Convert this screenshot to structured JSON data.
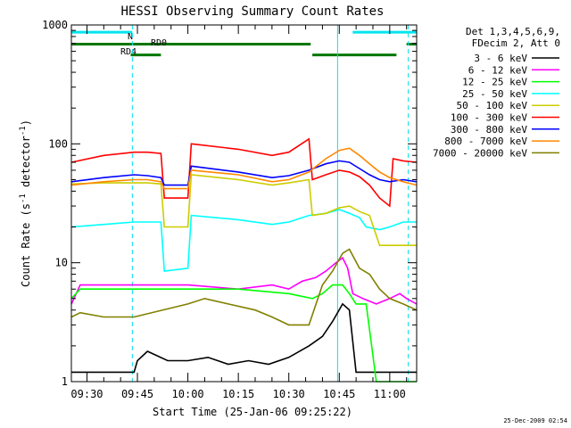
{
  "chart_data": {
    "type": "line",
    "title": "HESSI Observing Summary Count Rates",
    "xlabel": "Start Time (25-Jan-06 09:25:22)",
    "ylabel_prefix": "Count Rate (s",
    "ylabel_sup1": "-1",
    "ylabel_mid": " detector",
    "ylabel_sup2": "-1",
    "ylabel_suffix": ")",
    "yscale": "log",
    "ylim": [
      1,
      1000
    ],
    "xlim_min": [
      565.37,
      668
    ],
    "xticks": [
      {
        "min": 570,
        "label": "09:30"
      },
      {
        "min": 585,
        "label": "09:45"
      },
      {
        "min": 600,
        "label": "10:00"
      },
      {
        "min": 615,
        "label": "10:15"
      },
      {
        "min": 630,
        "label": "10:30"
      },
      {
        "min": 645,
        "label": "10:45"
      },
      {
        "min": 660,
        "label": "11:00"
      }
    ],
    "yticks": [
      {
        "value": 1,
        "label": "1"
      },
      {
        "value": 10,
        "label": "10"
      },
      {
        "value": 100,
        "label": "100"
      },
      {
        "value": 1000,
        "label": "1000"
      }
    ],
    "legend_header": [
      "Det 1,3,4,5,6,9,",
      "FDecim 2, Att 0"
    ],
    "series": [
      {
        "name": "3 - 6 keV",
        "color": "#000000",
        "points": [
          [
            565.4,
            1.2
          ],
          [
            584,
            1.2
          ],
          [
            585,
            1.5
          ],
          [
            588,
            1.8
          ],
          [
            594,
            1.5
          ],
          [
            600,
            1.5
          ],
          [
            606,
            1.6
          ],
          [
            612,
            1.4
          ],
          [
            618,
            1.5
          ],
          [
            624,
            1.4
          ],
          [
            630,
            1.6
          ],
          [
            636,
            2.0
          ],
          [
            640,
            2.4
          ],
          [
            643,
            3.2
          ],
          [
            646,
            4.5
          ],
          [
            648,
            4.0
          ],
          [
            650,
            1.2
          ],
          [
            668,
            1.2
          ]
        ]
      },
      {
        "name": "6 - 12 keV",
        "color": "#ff00ff",
        "points": [
          [
            565.4,
            4.5
          ],
          [
            568,
            6.5
          ],
          [
            584,
            6.5
          ],
          [
            600,
            6.5
          ],
          [
            615,
            6.0
          ],
          [
            625,
            6.5
          ],
          [
            630,
            6.0
          ],
          [
            634,
            7.0
          ],
          [
            638,
            7.5
          ],
          [
            641,
            8.5
          ],
          [
            644,
            10
          ],
          [
            646,
            11
          ],
          [
            647.5,
            9
          ],
          [
            649,
            5.5
          ],
          [
            652,
            5.0
          ],
          [
            656,
            4.5
          ],
          [
            660,
            5.0
          ],
          [
            663,
            5.5
          ],
          [
            665,
            5.0
          ],
          [
            668,
            4.5
          ]
        ]
      },
      {
        "name": "12 - 25 keV",
        "color": "#00ff00",
        "points": [
          [
            565.4,
            5.0
          ],
          [
            568,
            6.0
          ],
          [
            584,
            6.0
          ],
          [
            600,
            6.0
          ],
          [
            615,
            6.0
          ],
          [
            630,
            5.5
          ],
          [
            637,
            5.0
          ],
          [
            640,
            5.5
          ],
          [
            643,
            6.5
          ],
          [
            646,
            6.5
          ],
          [
            648,
            5.5
          ],
          [
            650,
            4.5
          ],
          [
            653,
            4.5
          ],
          [
            656,
            1.0
          ],
          [
            668,
            1.0
          ]
        ]
      },
      {
        "name": "25 - 50 keV",
        "color": "#00ffff",
        "points": [
          [
            565.4,
            20
          ],
          [
            575,
            21
          ],
          [
            584,
            22
          ],
          [
            588,
            22
          ],
          [
            592,
            22
          ],
          [
            593,
            8.5
          ],
          [
            600,
            9
          ],
          [
            601,
            25
          ],
          [
            615,
            23
          ],
          [
            625,
            21
          ],
          [
            630,
            22
          ],
          [
            636,
            25
          ],
          [
            641,
            26
          ],
          [
            645,
            28
          ],
          [
            648,
            26
          ],
          [
            651,
            24
          ],
          [
            653,
            20
          ],
          [
            657,
            19
          ],
          [
            660,
            20
          ],
          [
            662,
            21
          ],
          [
            664,
            22
          ],
          [
            668,
            22
          ]
        ]
      },
      {
        "name": "50 - 100 keV",
        "color": "#cccc00",
        "points": [
          [
            565.4,
            46
          ],
          [
            575,
            47
          ],
          [
            584,
            47
          ],
          [
            588,
            47
          ],
          [
            592,
            46
          ],
          [
            593,
            20
          ],
          [
            600,
            20
          ],
          [
            601,
            55
          ],
          [
            615,
            50
          ],
          [
            625,
            45
          ],
          [
            630,
            47
          ],
          [
            636,
            50
          ],
          [
            637,
            25
          ],
          [
            641,
            26
          ],
          [
            645,
            29
          ],
          [
            648,
            30
          ],
          [
            651,
            27
          ],
          [
            654,
            25
          ],
          [
            657,
            14
          ],
          [
            660,
            14
          ],
          [
            664,
            14
          ],
          [
            668,
            14
          ]
        ]
      },
      {
        "name": "100 - 300 keV",
        "color": "#ff0000",
        "points": [
          [
            565.4,
            70
          ],
          [
            575,
            80
          ],
          [
            584,
            85
          ],
          [
            588,
            85
          ],
          [
            592,
            83
          ],
          [
            593,
            35
          ],
          [
            600,
            35
          ],
          [
            601,
            100
          ],
          [
            615,
            90
          ],
          [
            625,
            80
          ],
          [
            630,
            85
          ],
          [
            636,
            110
          ],
          [
            637,
            50
          ],
          [
            641,
            55
          ],
          [
            645,
            60
          ],
          [
            648,
            58
          ],
          [
            651,
            53
          ],
          [
            654,
            45
          ],
          [
            657,
            35
          ],
          [
            660,
            30
          ],
          [
            661,
            75
          ],
          [
            664,
            72
          ],
          [
            668,
            70
          ]
        ]
      },
      {
        "name": "300 - 800 keV",
        "color": "#0000ff",
        "points": [
          [
            565.4,
            48
          ],
          [
            575,
            52
          ],
          [
            584,
            55
          ],
          [
            588,
            54
          ],
          [
            592,
            52
          ],
          [
            593,
            45
          ],
          [
            600,
            45
          ],
          [
            601,
            65
          ],
          [
            615,
            58
          ],
          [
            625,
            52
          ],
          [
            630,
            54
          ],
          [
            636,
            60
          ],
          [
            641,
            68
          ],
          [
            645,
            72
          ],
          [
            648,
            70
          ],
          [
            651,
            62
          ],
          [
            654,
            55
          ],
          [
            657,
            50
          ],
          [
            660,
            48
          ],
          [
            664,
            50
          ],
          [
            668,
            48
          ]
        ]
      },
      {
        "name": "800 - 7000 keV",
        "color": "#ff8800",
        "points": [
          [
            565.4,
            45
          ],
          [
            575,
            48
          ],
          [
            584,
            50
          ],
          [
            588,
            50
          ],
          [
            592,
            48
          ],
          [
            593,
            42
          ],
          [
            600,
            42
          ],
          [
            601,
            60
          ],
          [
            615,
            55
          ],
          [
            625,
            48
          ],
          [
            630,
            50
          ],
          [
            636,
            58
          ],
          [
            641,
            75
          ],
          [
            645,
            88
          ],
          [
            648,
            92
          ],
          [
            651,
            80
          ],
          [
            654,
            68
          ],
          [
            657,
            58
          ],
          [
            660,
            52
          ],
          [
            664,
            48
          ],
          [
            668,
            45
          ]
        ]
      },
      {
        "name": "7000 - 20000 keV",
        "color": "#808000",
        "points": [
          [
            565.4,
            3.5
          ],
          [
            568,
            3.8
          ],
          [
            575,
            3.5
          ],
          [
            584,
            3.5
          ],
          [
            600,
            4.5
          ],
          [
            605,
            5.0
          ],
          [
            612,
            4.5
          ],
          [
            620,
            4.0
          ],
          [
            625,
            3.5
          ],
          [
            630,
            3.0
          ],
          [
            636,
            3.0
          ],
          [
            640,
            6.5
          ],
          [
            643,
            8.5
          ],
          [
            646,
            12
          ],
          [
            648,
            13
          ],
          [
            651,
            9
          ],
          [
            654,
            8
          ],
          [
            657,
            6
          ],
          [
            660,
            5
          ],
          [
            664,
            4.5
          ],
          [
            668,
            4.0
          ]
        ]
      }
    ],
    "annotations": [
      {
        "label": "N",
        "color": "#00e5ee",
        "y": 870,
        "segments": [
          [
            565.4,
            583.5
          ],
          [
            649,
            668
          ]
        ]
      },
      {
        "label": "RD0",
        "color": "#007700",
        "y": 690,
        "segments": [
          [
            565.4,
            636.5
          ],
          [
            665,
            668
          ]
        ]
      },
      {
        "label": "RD4",
        "color": "#007700",
        "y": 560,
        "segments": [
          [
            583,
            592
          ],
          [
            637,
            662
          ]
        ]
      }
    ],
    "vlines": [
      {
        "min": 583.5,
        "style": "dashed",
        "color": "#00e5ee"
      },
      {
        "min": 644.5,
        "style": "solid",
        "color": "#00e5ee"
      },
      {
        "min": 665.5,
        "style": "dashed",
        "color": "#00e5ee"
      }
    ]
  },
  "timestamp": "25-Dec-2009 02:54"
}
